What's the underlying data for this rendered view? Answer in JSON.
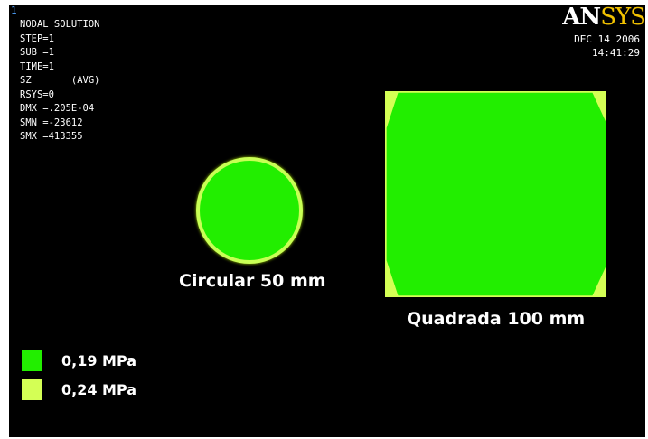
{
  "window_number": "1",
  "info_lines": [
    "NODAL SOLUTION",
    "",
    "STEP=1",
    "SUB =1",
    "TIME=1",
    "SZ       (AVG)",
    "RSYS=0",
    "DMX =.205E-04",
    "SMN =-23612",
    "SMX =413355"
  ],
  "logo": {
    "part1": "AN",
    "part2": "SYS"
  },
  "date": "DEC 14 2006",
  "time": "14:41:29",
  "shapes": {
    "circle_label": "Circular 50 mm",
    "square_label": "Quadrada 100 mm"
  },
  "legend": [
    {
      "label": "0,19 MPa",
      "color": "#22ee00"
    },
    {
      "label": "0,24 MPa",
      "color": "#d4ff55"
    }
  ]
}
